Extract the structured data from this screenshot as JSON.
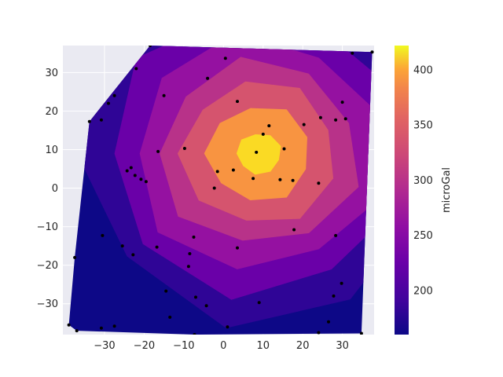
{
  "chart_data": {
    "type": "contour",
    "xlabel": "",
    "ylabel": "",
    "xlim": [
      -40.5,
      38
    ],
    "ylim": [
      -38,
      37
    ],
    "x_ticks": [
      "−30",
      "−20",
      "−10",
      "0",
      "10",
      "20",
      "30"
    ],
    "y_ticks": [
      "−30",
      "−20",
      "−10",
      "0",
      "10",
      "20",
      "30"
    ],
    "colorbar": {
      "label": "microGal",
      "range": [
        160,
        422
      ],
      "ticks": [
        "200",
        "250",
        "300",
        "350",
        "400"
      ],
      "colormap": "plasma"
    },
    "levels": [
      {
        "value": 180,
        "color": "#2f0596"
      },
      {
        "value": 220,
        "color": "#6a00a8"
      },
      {
        "value": 255,
        "color": "#9511a1"
      },
      {
        "value": 290,
        "color": "#b83289"
      },
      {
        "value": 320,
        "color": "#d5546e"
      },
      {
        "value": 355,
        "color": "#f89441"
      },
      {
        "value": 395,
        "color": "#fada24"
      }
    ],
    "grid": true,
    "background": "#eaeaf2",
    "points": [
      [
        -18.5,
        37
      ],
      [
        0.5,
        33.7
      ],
      [
        32.5,
        35
      ],
      [
        37.5,
        35.3
      ],
      [
        -22,
        31
      ],
      [
        -4,
        28.5
      ],
      [
        -27.5,
        24
      ],
      [
        -15,
        24
      ],
      [
        3.5,
        22.5
      ],
      [
        30,
        22.3
      ],
      [
        -29,
        22
      ],
      [
        -33.8,
        17.3
      ],
      [
        -30.8,
        17.7
      ],
      [
        24.5,
        18.3
      ],
      [
        28.3,
        17.7
      ],
      [
        30.8,
        18
      ],
      [
        11.5,
        16.2
      ],
      [
        20.3,
        16.5
      ],
      [
        10,
        14
      ],
      [
        -16.5,
        9.5
      ],
      [
        -9.8,
        10.3
      ],
      [
        15.3,
        10.2
      ],
      [
        8.3,
        9.3
      ],
      [
        -24.3,
        4.5
      ],
      [
        -23.3,
        5.3
      ],
      [
        -22.3,
        3.3
      ],
      [
        -20.8,
        2.3
      ],
      [
        -19.5,
        1.7
      ],
      [
        -1.5,
        4.3
      ],
      [
        2.5,
        4.7
      ],
      [
        7.5,
        2.5
      ],
      [
        14.3,
        2.2
      ],
      [
        17.5,
        2
      ],
      [
        24,
        1.3
      ],
      [
        -2.3,
        0
      ],
      [
        17.8,
        -10.8
      ],
      [
        28.3,
        -12.3
      ],
      [
        -30.5,
        -12.3
      ],
      [
        -7.5,
        -12.7
      ],
      [
        -16.8,
        -15.3
      ],
      [
        3.5,
        -15.5
      ],
      [
        -25.5,
        -15
      ],
      [
        -22.8,
        -17.3
      ],
      [
        -8.5,
        -17
      ],
      [
        -37.5,
        -18
      ],
      [
        -8.8,
        -20.3
      ],
      [
        29.8,
        -24.7
      ],
      [
        -14.5,
        -26.7
      ],
      [
        27.8,
        -28
      ],
      [
        -7,
        -28.3
      ],
      [
        9,
        -29.7
      ],
      [
        -4.3,
        -30.5
      ],
      [
        -13.5,
        -33.5
      ],
      [
        -39,
        -35.5
      ],
      [
        26.5,
        -34.7
      ],
      [
        -30.8,
        -36.3
      ],
      [
        -27.5,
        -35.8
      ],
      [
        1,
        -36
      ],
      [
        24,
        -37.5
      ],
      [
        34.8,
        -37.7
      ],
      [
        -37,
        -37
      ],
      [
        -7.3,
        -38
      ]
    ]
  }
}
